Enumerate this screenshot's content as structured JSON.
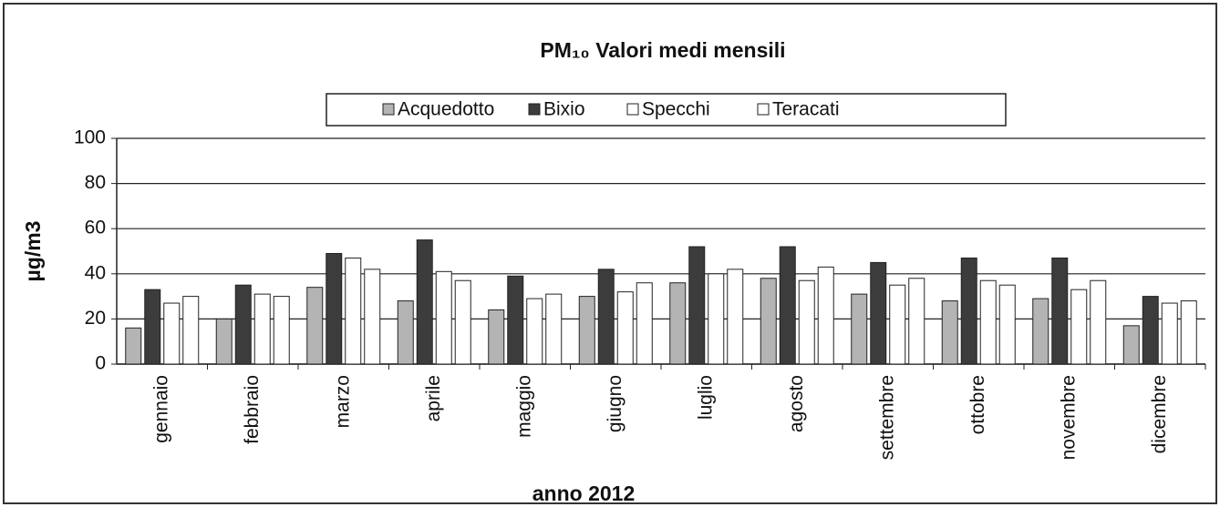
{
  "chart_data": {
    "type": "bar",
    "title": "PM₁₀ Valori medi mensili",
    "x_label": "anno 2012",
    "y_label": "µg/m3",
    "categories": [
      "gennaio",
      "febbraio",
      "marzo",
      "aprile",
      "maggio",
      "giugno",
      "luglio",
      "agosto",
      "settembre",
      "ottobre",
      "novembre",
      "dicembre"
    ],
    "series": [
      {
        "name": "Acquedotto",
        "color": "#b4b4b4",
        "values": [
          16,
          20,
          34,
          28,
          24,
          30,
          36,
          38,
          31,
          28,
          29,
          17
        ]
      },
      {
        "name": "Bixio",
        "color": "#3c3c3c",
        "values": [
          33,
          35,
          49,
          55,
          39,
          42,
          52,
          52,
          45,
          47,
          47,
          30
        ]
      },
      {
        "name": "Specchi",
        "color": "#ffffff",
        "values": [
          27,
          31,
          47,
          41,
          29,
          32,
          40,
          37,
          35,
          37,
          33,
          27
        ]
      },
      {
        "name": "Teracati",
        "color": "#ffffff",
        "values": [
          30,
          30,
          42,
          37,
          31,
          36,
          42,
          43,
          38,
          35,
          37,
          28
        ]
      }
    ],
    "ylim": [
      0,
      100
    ],
    "yticks": [
      0,
      20,
      40,
      60,
      80,
      100
    ],
    "grid": true,
    "legend": "top"
  }
}
